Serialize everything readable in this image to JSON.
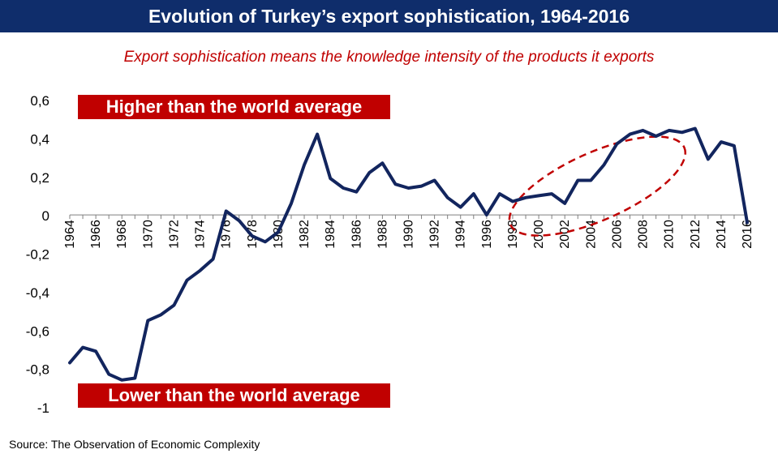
{
  "title": "Evolution of Turkey’s export sophistication, 1964-2016",
  "subtitle": "Export sophistication means the knowledge intensity of the products it exports",
  "labels": {
    "higher": "Higher than the world average",
    "lower": "Lower than the world average"
  },
  "source": "Source: The Observation of Economic Complexity",
  "colors": {
    "title_bg": "#0f2d6b",
    "accent_red": "#c00000",
    "line": "#12255e"
  },
  "chart_data": {
    "type": "line",
    "title": "Evolution of Turkey’s export sophistication, 1964-2016",
    "xlabel": "",
    "ylabel": "",
    "ylim": [
      -1,
      0.6
    ],
    "yticks": [
      0.6,
      0.4,
      0.2,
      0,
      -0.2,
      -0.4,
      -0.6,
      -0.8,
      -1
    ],
    "ytick_labels": [
      "0,6",
      "0,4",
      "0,2",
      "0",
      "-0,2",
      "-0,4",
      "-0,6",
      "-0,8",
      "-1"
    ],
    "x_tick_labels": [
      "1964",
      "1966",
      "1968",
      "1970",
      "1972",
      "1974",
      "1976",
      "1978",
      "1980",
      "1982",
      "1984",
      "1986",
      "1988",
      "1990",
      "1992",
      "1994",
      "1996",
      "1998",
      "2000",
      "2002",
      "2004",
      "2006",
      "2008",
      "2010",
      "2012",
      "2014",
      "2016"
    ],
    "grid": false,
    "highlight": "dashed ellipse around 1998-2011",
    "x": [
      1964,
      1965,
      1966,
      1967,
      1968,
      1969,
      1970,
      1971,
      1972,
      1973,
      1974,
      1975,
      1976,
      1977,
      1978,
      1979,
      1980,
      1981,
      1982,
      1983,
      1984,
      1985,
      1986,
      1987,
      1988,
      1989,
      1990,
      1991,
      1992,
      1993,
      1994,
      1995,
      1996,
      1997,
      1998,
      1999,
      2000,
      2001,
      2002,
      2003,
      2004,
      2005,
      2006,
      2007,
      2008,
      2009,
      2010,
      2011,
      2012,
      2013,
      2014,
      2015,
      2016
    ],
    "series": [
      {
        "values": [
          -0.77,
          -0.69,
          -0.71,
          -0.83,
          -0.86,
          -0.85,
          -0.55,
          -0.52,
          -0.47,
          -0.34,
          -0.29,
          -0.23,
          0.02,
          -0.03,
          -0.11,
          -0.14,
          -0.09,
          0.06,
          0.26,
          0.42,
          0.19,
          0.14,
          0.12,
          0.22,
          0.27,
          0.16,
          0.14,
          0.15,
          0.18,
          0.09,
          0.04,
          0.11,
          0.0,
          0.11,
          0.07,
          0.09,
          0.1,
          0.11,
          0.06,
          0.18,
          0.18,
          0.26,
          0.37,
          0.42,
          0.44,
          0.41,
          0.44,
          0.43,
          0.45,
          0.29,
          0.38,
          0.36,
          -0.04
        ]
      }
    ]
  }
}
